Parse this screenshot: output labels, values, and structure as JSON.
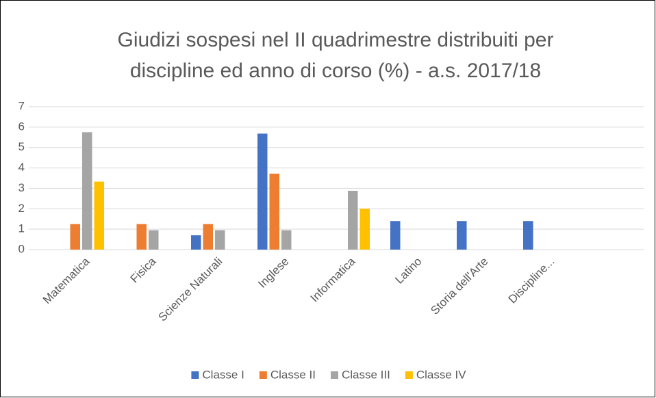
{
  "chart_data": {
    "type": "bar",
    "title": [
      "Giudizi sospesi nel II quadrimestre distribuiti per",
      "discipline ed anno di corso (%) - a.s. 2017/18"
    ],
    "categories": [
      "Matematica",
      "Fisica",
      "Scienze Naturali",
      "Inglese",
      "Informatica",
      "Latino",
      "Storia dell'Arte",
      "Discipline...",
      null
    ],
    "series": [
      {
        "name": "Classe I",
        "color": "#4472c4",
        "values": [
          0,
          0,
          0.7,
          5.68,
          0,
          1.4,
          1.4,
          1.4,
          0
        ]
      },
      {
        "name": "Classe II",
        "color": "#ed7d31",
        "values": [
          1.25,
          1.25,
          1.25,
          3.72,
          0,
          0,
          0,
          0,
          0
        ]
      },
      {
        "name": "Classe III",
        "color": "#a5a5a5",
        "values": [
          5.75,
          0.95,
          0.95,
          0.95,
          2.88,
          0,
          0,
          0,
          0
        ]
      },
      {
        "name": "Classe IV",
        "color": "#ffc000",
        "values": [
          3.33,
          0,
          0,
          0,
          2.0,
          0,
          0,
          0,
          0
        ]
      }
    ],
    "ylim": [
      0,
      7
    ],
    "yticks": [
      0,
      1,
      2,
      3,
      4,
      5,
      6,
      7
    ],
    "grid": true,
    "legend": "bottom"
  }
}
